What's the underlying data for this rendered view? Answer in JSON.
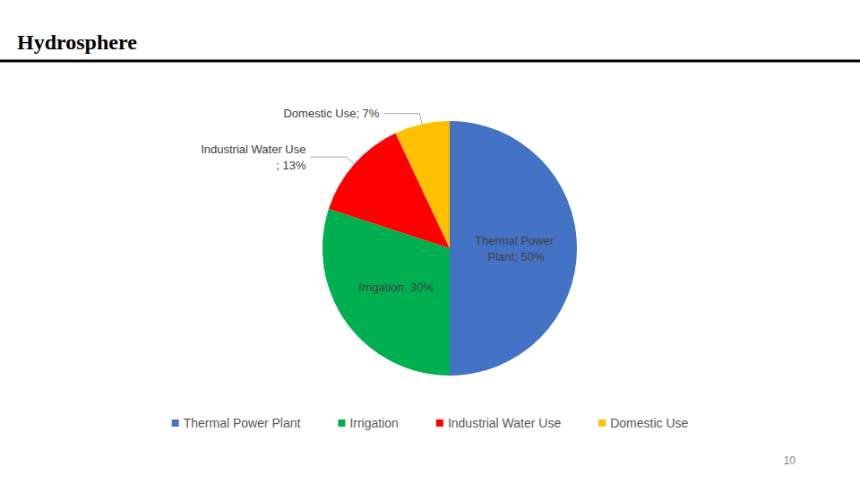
{
  "chart_data": {
    "type": "pie",
    "title": "Hydrosphere",
    "categories": [
      "Thermal Power Plant",
      "Irrigation",
      "Industrial Water Use",
      "Domestic Use"
    ],
    "values": [
      50,
      30,
      13,
      7
    ],
    "value_labels": [
      "Thermal Power Plant; 50%",
      "Irrigation; 30%",
      "Industrial Water Use; 13%",
      "Domestic Use; 7%"
    ],
    "colors": [
      "#4472c4",
      "#00b050",
      "#ff0000",
      "#ffc000"
    ],
    "data_labels": true,
    "legend": "bottom"
  },
  "slide": {
    "page_number": 10
  }
}
